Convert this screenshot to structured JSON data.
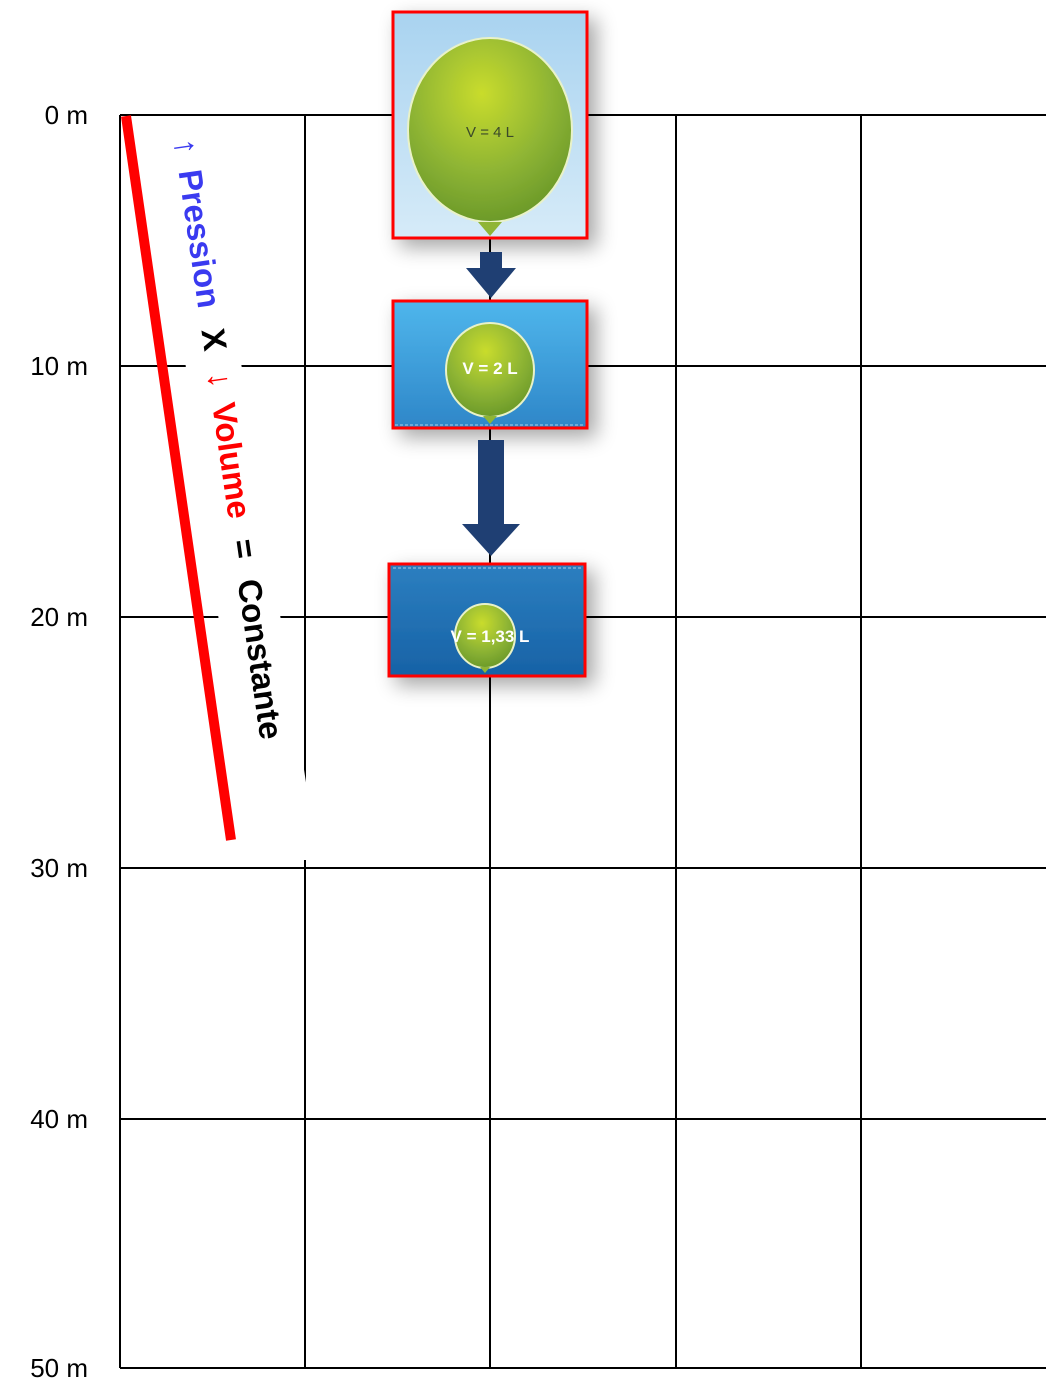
{
  "depth_axis": {
    "labels": [
      "0 m",
      "10 m",
      "20 m",
      "30 m",
      "40 m",
      "50 m"
    ]
  },
  "formula": {
    "pressure_arrow": "↑",
    "pressure": "Pression",
    "times": "X",
    "volume_arrow": "↓",
    "volume": "Volume",
    "equals": "=",
    "constant": "Constante"
  },
  "balloons": [
    {
      "volume_label": "V = 4 L"
    },
    {
      "volume_label": "V = 2 L"
    },
    {
      "volume_label": "V = 1,33 L"
    }
  ],
  "colors": {
    "grid": "#000000",
    "pressure_text": "#3a3af0",
    "volume_text": "#ff0000",
    "constant_text": "#000000",
    "red_line": "#ff0000",
    "frame_border": "#ff0000",
    "down_arrow": "#1f3f73",
    "balloon": "#8fb534"
  }
}
